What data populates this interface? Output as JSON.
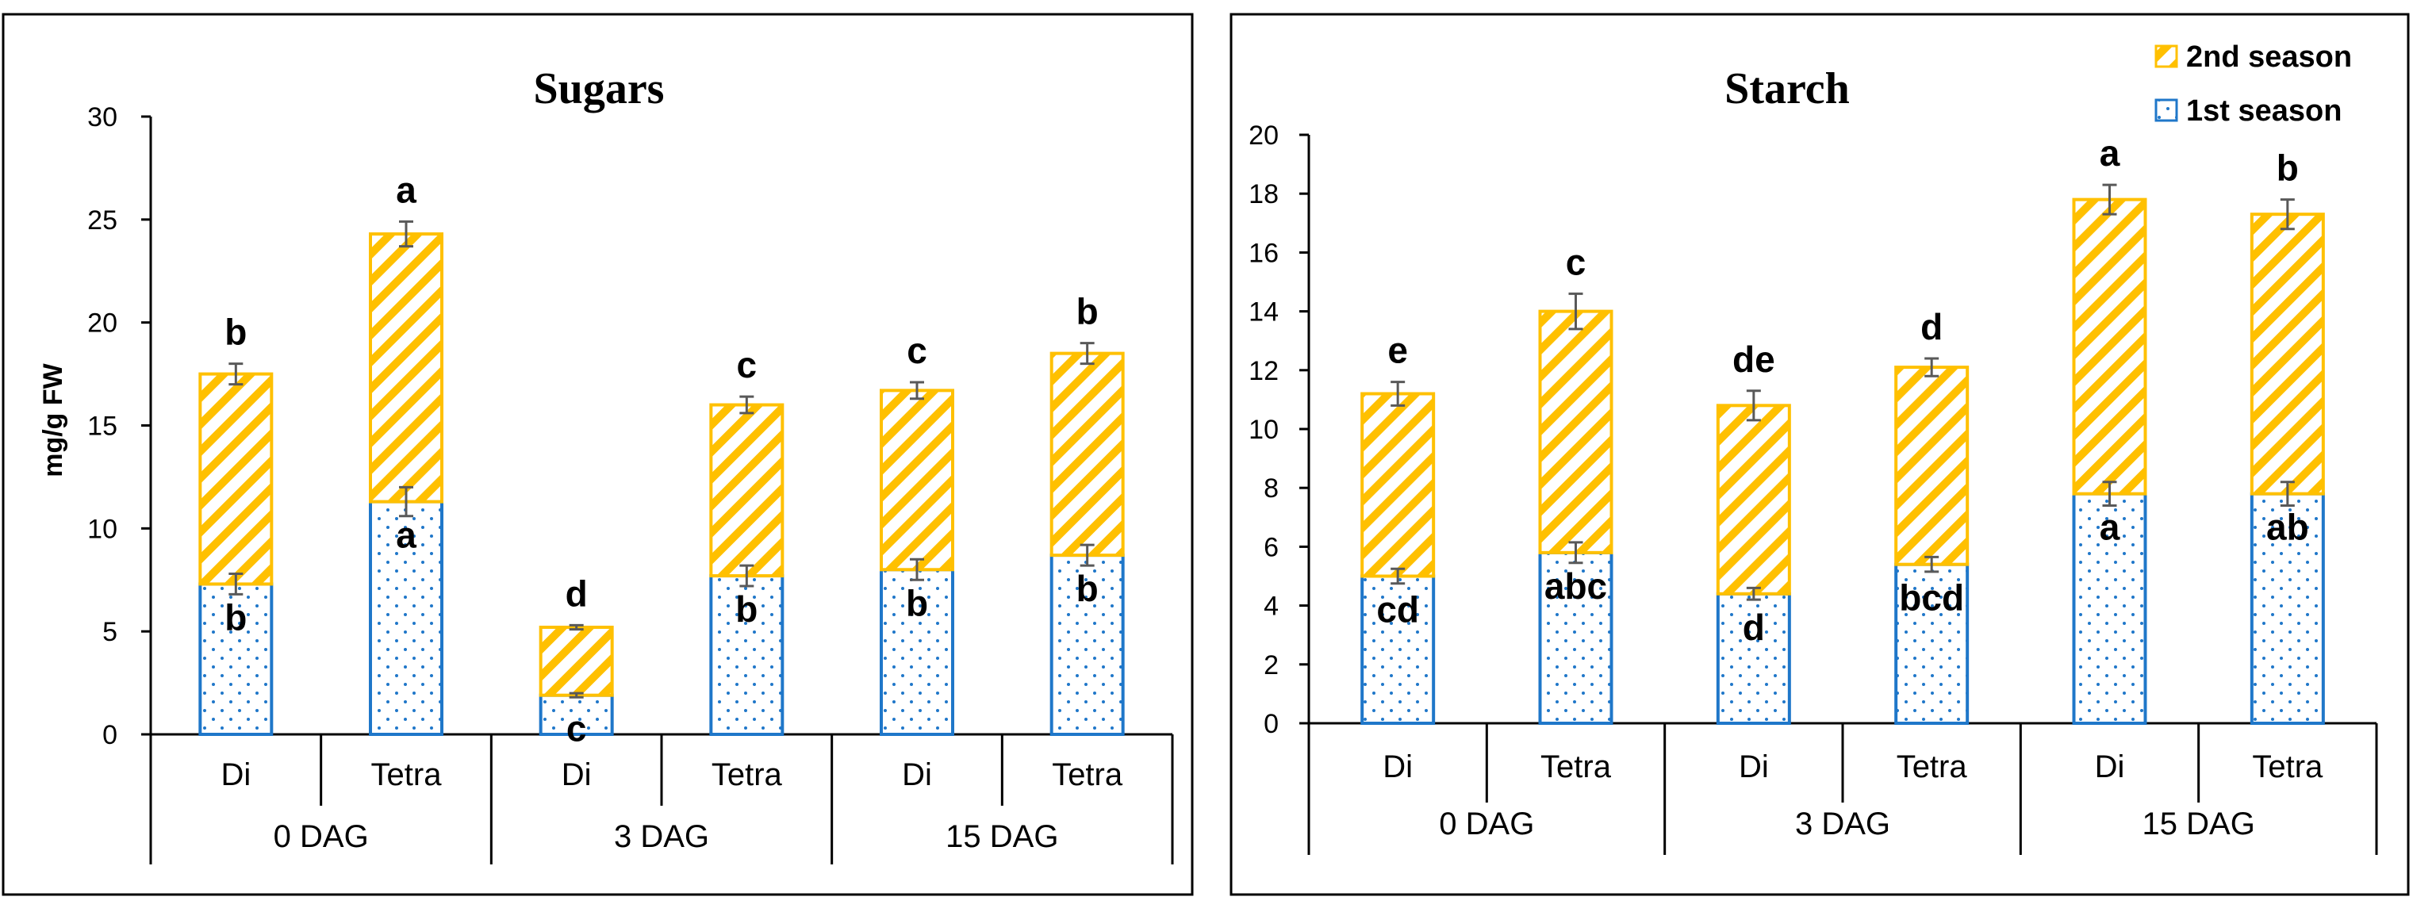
{
  "colors": {
    "s1_edge": "#1f77c9",
    "s2_edge": "#ffc000",
    "dots": "#1f77c9",
    "hatch": "#ffc000",
    "axis": "#000000",
    "err": "#595959"
  },
  "legend": {
    "s2_label": "2nd season",
    "s1_label": "1st season",
    "s2_icon": "hatch-swatch",
    "s1_icon": "dot-swatch"
  },
  "chart_data": [
    {
      "type": "bar",
      "stacked": true,
      "title": "Sugars",
      "ylabel": "mg/g FW",
      "xlabel": "",
      "ylim": [
        0,
        30
      ],
      "yticks": [
        0,
        5,
        10,
        15,
        20,
        25,
        30
      ],
      "categories": [
        "Di",
        "Tetra",
        "Di",
        "Tetra",
        "Di",
        "Tetra"
      ],
      "groups": [
        "0 DAG",
        "3 DAG",
        "15 DAG"
      ],
      "series": [
        {
          "name": "1st season",
          "values": [
            7.3,
            11.3,
            1.9,
            7.7,
            8.0,
            8.7
          ],
          "errors": [
            0.5,
            0.7,
            0.1,
            0.5,
            0.5,
            0.5
          ],
          "letters": [
            "b",
            "a",
            "c",
            "b",
            "b",
            "b"
          ]
        },
        {
          "name": "2nd season",
          "values": [
            10.2,
            13.0,
            3.3,
            8.3,
            8.7,
            9.8
          ],
          "errors": [
            0.5,
            0.6,
            0.1,
            0.4,
            0.4,
            0.5
          ],
          "letters": [
            "b",
            "a",
            "d",
            "c",
            "c",
            "b"
          ]
        }
      ]
    },
    {
      "type": "bar",
      "stacked": true,
      "title": "Starch",
      "ylabel": "",
      "xlabel": "",
      "ylim": [
        0,
        20
      ],
      "yticks": [
        0,
        2,
        4,
        6,
        8,
        10,
        12,
        14,
        16,
        18,
        20
      ],
      "categories": [
        "Di",
        "Tetra",
        "Di",
        "Tetra",
        "Di",
        "Tetra"
      ],
      "groups": [
        "0 DAG",
        "3 DAG",
        "15 DAG"
      ],
      "series": [
        {
          "name": "1st season",
          "values": [
            5.0,
            5.8,
            4.4,
            5.4,
            7.8,
            7.8
          ],
          "errors": [
            0.25,
            0.35,
            0.2,
            0.25,
            0.4,
            0.4
          ],
          "letters": [
            "cd",
            "abc",
            "d",
            "bcd",
            "a",
            "ab"
          ]
        },
        {
          "name": "2nd season",
          "values": [
            6.2,
            8.2,
            6.4,
            6.7,
            10.0,
            9.5
          ],
          "errors": [
            0.4,
            0.6,
            0.5,
            0.3,
            0.5,
            0.5
          ],
          "letters": [
            "e",
            "c",
            "de",
            "d",
            "a",
            "b"
          ]
        }
      ]
    }
  ]
}
